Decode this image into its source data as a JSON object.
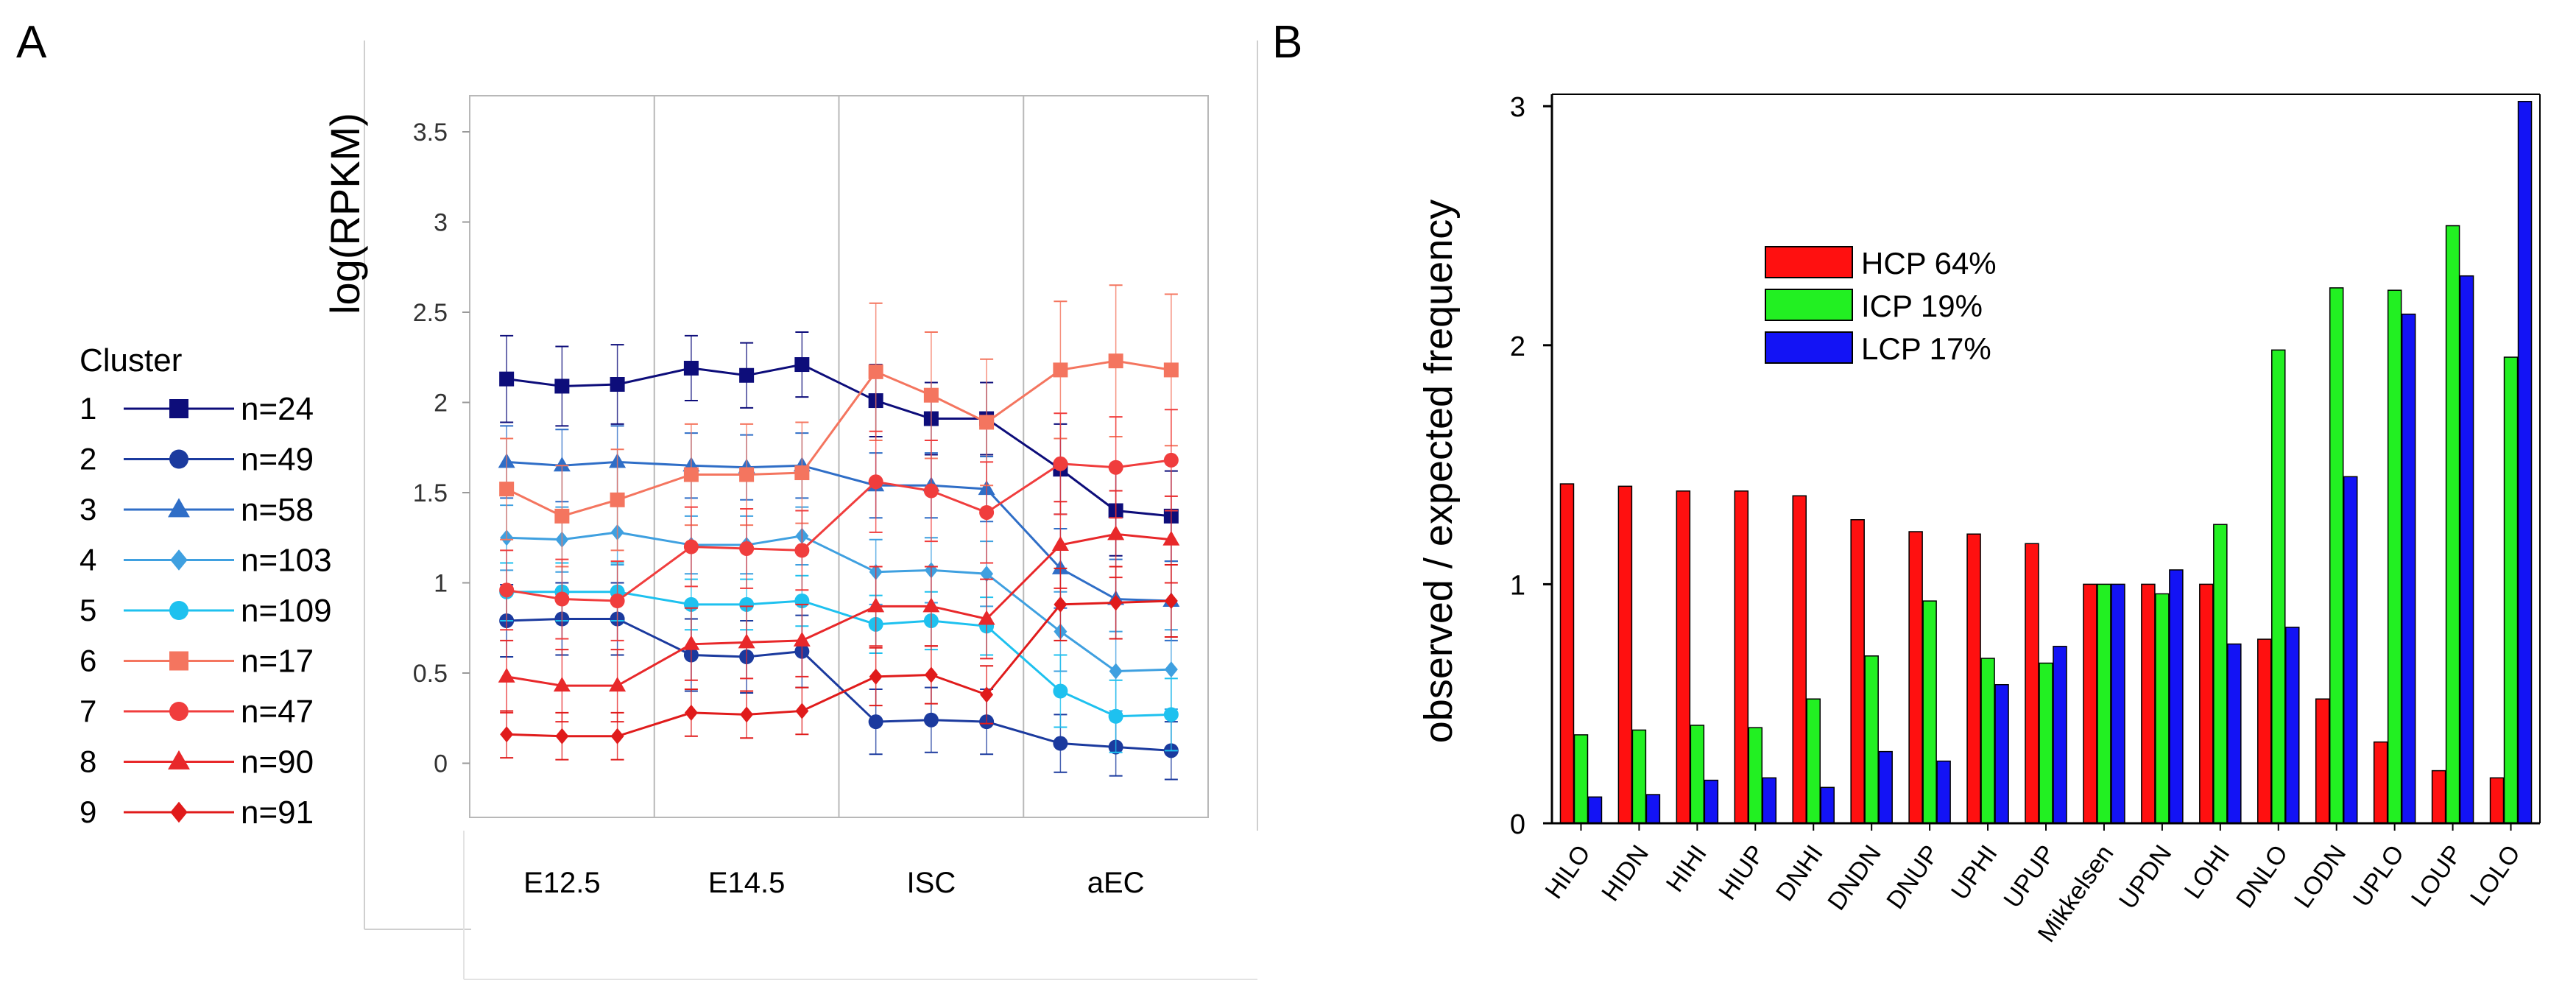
{
  "panels": {
    "a": "A",
    "b": "B"
  },
  "chart_data": [
    {
      "type": "line",
      "panel": "A",
      "title": "",
      "xlabel": "",
      "ylabel": "log(RPKM)",
      "ylim": [
        -0.3,
        3.7
      ],
      "yticks": [
        "0",
        "0.5",
        "1",
        "1.5",
        "2",
        "2.5",
        "3",
        "3.5"
      ],
      "ytick_values": [
        0,
        0.5,
        1,
        1.5,
        2,
        2.5,
        3,
        3.5
      ],
      "groups": [
        "E12.5",
        "E14.5",
        "ISC",
        "aEC"
      ],
      "points_per_group": 3,
      "legend_title": "Cluster",
      "grid": "vertical separators between groups",
      "series": [
        {
          "id": "1",
          "name": "n=24",
          "color": "#0d0d7a",
          "marker": "square",
          "values": [
            2.13,
            2.09,
            2.1,
            2.19,
            2.15,
            2.21,
            2.01,
            1.91,
            1.91,
            1.63,
            1.4,
            1.37
          ],
          "err": [
            0.24,
            0.22,
            0.22,
            0.18,
            0.18,
            0.18,
            0.2,
            0.2,
            0.2,
            0.25,
            0.25,
            0.25
          ]
        },
        {
          "id": "2",
          "name": "n=49",
          "color": "#1b3a9e",
          "marker": "circle",
          "values": [
            0.79,
            0.8,
            0.8,
            0.6,
            0.59,
            0.62,
            0.23,
            0.24,
            0.23,
            0.11,
            0.09,
            0.07
          ],
          "err": [
            0.2,
            0.2,
            0.2,
            0.2,
            0.2,
            0.2,
            0.18,
            0.18,
            0.18,
            0.16,
            0.16,
            0.16
          ]
        },
        {
          "id": "3",
          "name": "n=58",
          "color": "#2f6ec7",
          "marker": "triangle",
          "values": [
            1.67,
            1.65,
            1.67,
            1.65,
            1.64,
            1.65,
            1.54,
            1.54,
            1.52,
            1.08,
            0.91,
            0.9
          ],
          "err": [
            0.2,
            0.2,
            0.2,
            0.18,
            0.18,
            0.18,
            0.18,
            0.18,
            0.18,
            0.22,
            0.22,
            0.22
          ]
        },
        {
          "id": "4",
          "name": "n=103",
          "color": "#3fa0e0",
          "marker": "diamond",
          "values": [
            1.25,
            1.24,
            1.28,
            1.21,
            1.21,
            1.26,
            1.06,
            1.07,
            1.05,
            0.73,
            0.51,
            0.52
          ],
          "err": [
            0.18,
            0.18,
            0.18,
            0.16,
            0.16,
            0.16,
            0.18,
            0.18,
            0.18,
            0.22,
            0.22,
            0.22
          ]
        },
        {
          "id": "5",
          "name": "n=109",
          "color": "#1ec1ef",
          "marker": "circle",
          "values": [
            0.95,
            0.95,
            0.95,
            0.88,
            0.88,
            0.9,
            0.77,
            0.79,
            0.76,
            0.4,
            0.26,
            0.27
          ],
          "err": [
            0.16,
            0.16,
            0.16,
            0.14,
            0.14,
            0.14,
            0.16,
            0.16,
            0.16,
            0.2,
            0.2,
            0.2
          ]
        },
        {
          "id": "6",
          "name": "n=17",
          "color": "#f4755f",
          "marker": "square",
          "values": [
            1.52,
            1.37,
            1.46,
            1.6,
            1.6,
            1.61,
            2.17,
            2.04,
            1.89,
            2.18,
            2.23,
            2.18
          ],
          "err": [
            0.28,
            0.28,
            0.28,
            0.28,
            0.28,
            0.28,
            0.38,
            0.35,
            0.35,
            0.38,
            0.42,
            0.42
          ]
        },
        {
          "id": "7",
          "name": "n=47",
          "color": "#f03d3d",
          "marker": "circle",
          "values": [
            0.96,
            0.91,
            0.9,
            1.2,
            1.19,
            1.18,
            1.56,
            1.51,
            1.39,
            1.66,
            1.64,
            1.68
          ],
          "err": [
            0.22,
            0.22,
            0.22,
            0.22,
            0.22,
            0.22,
            0.28,
            0.28,
            0.28,
            0.28,
            0.28,
            0.28
          ]
        },
        {
          "id": "8",
          "name": "n=90",
          "color": "#e8282a",
          "marker": "triangle",
          "values": [
            0.48,
            0.43,
            0.43,
            0.66,
            0.67,
            0.68,
            0.87,
            0.87,
            0.8,
            1.21,
            1.27,
            1.24
          ],
          "err": [
            0.2,
            0.2,
            0.2,
            0.2,
            0.2,
            0.2,
            0.22,
            0.22,
            0.22,
            0.24,
            0.24,
            0.24
          ]
        },
        {
          "id": "9",
          "name": "n=91",
          "color": "#e01b1b",
          "marker": "diamond",
          "values": [
            0.16,
            0.15,
            0.15,
            0.28,
            0.27,
            0.29,
            0.48,
            0.49,
            0.38,
            0.88,
            0.89,
            0.9
          ],
          "err": [
            0.13,
            0.13,
            0.13,
            0.13,
            0.13,
            0.13,
            0.16,
            0.16,
            0.16,
            0.2,
            0.2,
            0.2
          ]
        }
      ]
    },
    {
      "type": "bar",
      "panel": "B",
      "title": "",
      "xlabel": "",
      "ylabel": "observed / expected frequency",
      "ylim": [
        0,
        3.05
      ],
      "yticks": [
        "0",
        "1",
        "2",
        "3"
      ],
      "ytick_values": [
        0,
        1,
        2,
        3
      ],
      "legend_position": "upper-left inside plot",
      "categories": [
        "HILO",
        "HIDN",
        "HIHI",
        "HIUP",
        "DNHI",
        "DNDN",
        "DNUP",
        "UPHI",
        "UPUP",
        "Mikkelsen",
        "UPDN",
        "LOHI",
        "DNLO",
        "LODN",
        "UPLO",
        "LOUP",
        "LOLO"
      ],
      "series": [
        {
          "name": "HCP 64%",
          "color": "#ff1010",
          "values": [
            1.42,
            1.41,
            1.39,
            1.39,
            1.37,
            1.27,
            1.22,
            1.21,
            1.17,
            1.0,
            1.0,
            1.0,
            0.77,
            0.52,
            0.34,
            0.22,
            0.19
          ]
        },
        {
          "name": "ICP 19%",
          "color": "#22f022",
          "values": [
            0.37,
            0.39,
            0.41,
            0.4,
            0.52,
            0.7,
            0.93,
            0.69,
            0.67,
            1.0,
            0.96,
            1.25,
            1.98,
            2.24,
            2.23,
            2.5,
            1.95
          ]
        },
        {
          "name": "LCP 17%",
          "color": "#1313f5",
          "values": [
            0.11,
            0.12,
            0.18,
            0.19,
            0.15,
            0.3,
            0.26,
            0.58,
            0.74,
            1.0,
            1.06,
            0.75,
            0.82,
            1.45,
            2.13,
            2.29,
            3.02
          ]
        }
      ]
    }
  ]
}
